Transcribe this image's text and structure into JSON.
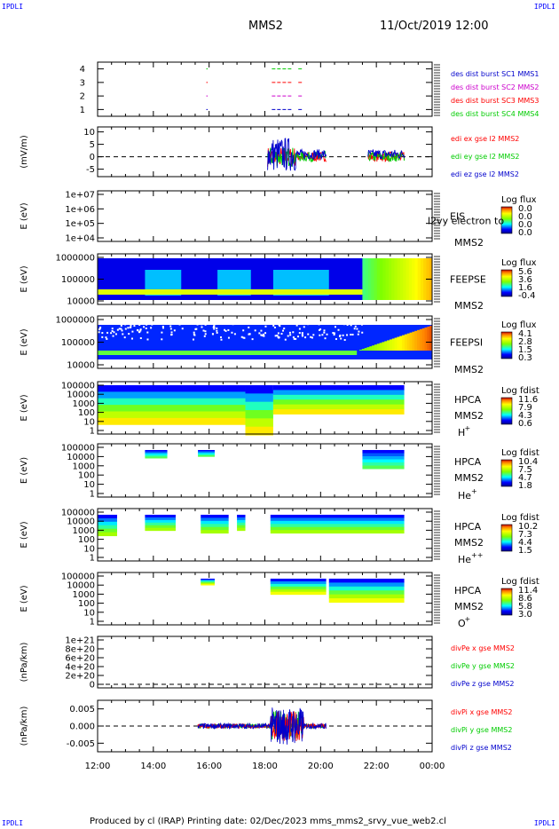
{
  "header": {
    "corner_tl": "IPDLI",
    "corner_tr": "IPDLI",
    "corner_bl": "IPDLI",
    "corner_br": "IPDLI",
    "spacecraft": "MMS2",
    "datetime": "11/Oct/2019 12:00"
  },
  "footer": {
    "text": "Produced by cl (IRAP)   Printing date: 02/Dec/2023   mms_mms2_srvy_vue_web2.cl"
  },
  "colors": {
    "red": "#ff0000",
    "green": "#00cc00",
    "blue": "#0000cc",
    "magenta": "#cc00cc",
    "frame": "#000000"
  },
  "chart_data": [
    {
      "id": "burst",
      "type": "scatter",
      "ylim": [
        0.5,
        4.5
      ],
      "yticks": [
        "1",
        "2",
        "3",
        "4"
      ],
      "legend": [
        {
          "text": "des dist burst SC1 MMS1",
          "color": "#0000cc"
        },
        {
          "text": "des dist burst SC2 MMS2",
          "color": "#cc00cc"
        },
        {
          "text": "des dist burst SC3 MMS3",
          "color": "#ff0000"
        },
        {
          "text": "des dist burst SC4 MMS4",
          "color": "#00cc00"
        }
      ],
      "series": [
        {
          "sc": 1,
          "intervals": [
            [
              15.9,
              15.95
            ],
            [
              18.25,
              18.95
            ],
            [
              19.2,
              19.35
            ]
          ]
        },
        {
          "sc": 2,
          "intervals": [
            [
              15.9,
              15.95
            ],
            [
              18.25,
              18.95
            ],
            [
              19.2,
              19.35
            ]
          ]
        },
        {
          "sc": 3,
          "intervals": [
            [
              15.9,
              15.95
            ],
            [
              18.25,
              18.95
            ],
            [
              19.2,
              19.35
            ]
          ]
        },
        {
          "sc": 4,
          "intervals": [
            [
              15.9,
              15.95
            ],
            [
              18.25,
              18.95
            ],
            [
              19.2,
              19.35
            ]
          ]
        }
      ]
    },
    {
      "id": "edi",
      "type": "line",
      "ylabel": "(mV/m)",
      "ylim": [
        -8,
        12
      ],
      "yticks": [
        "10",
        "5",
        "0",
        "-5"
      ],
      "legend": [
        {
          "text": "edi ex gse l2 MMS2",
          "color": "#ff0000"
        },
        {
          "text": "edi ey gse l2 MMS2",
          "color": "#00cc00"
        },
        {
          "text": "edi ez gse l2 MMS2",
          "color": "#0000cc"
        }
      ],
      "segments": [
        [
          18.1,
          20.2
        ],
        [
          21.7,
          23.0
        ]
      ]
    },
    {
      "id": "eis",
      "type": "heatmap",
      "ylabel": "E (eV)",
      "yticks": [
        "1e+07",
        "1e+06",
        "1e+05",
        "1e+04"
      ],
      "label": "EIS",
      "overlay_label": "l2vy electron to",
      "sc_label": "MMS2",
      "cbar_title": "Log flux",
      "cbar_ticks": [
        "0.0",
        "0.0",
        "0.0",
        "0.0"
      ]
    },
    {
      "id": "feepse",
      "type": "heatmap",
      "ylabel": "E (eV)",
      "yticks": [
        "1000000",
        "100000",
        "10000"
      ],
      "label": "FEEPSE",
      "sc_label": "MMS2",
      "cbar_title": "Log flux",
      "cbar_ticks": [
        "5.6",
        "3.6",
        "1.6",
        "-0.4"
      ]
    },
    {
      "id": "feepsi",
      "type": "heatmap",
      "ylabel": "E (eV)",
      "yticks": [
        "1000000",
        "100000",
        "10000"
      ],
      "label": "FEEPSI",
      "sc_label": "MMS2",
      "cbar_title": "Log flux",
      "cbar_ticks": [
        "4.1",
        "2.8",
        "1.5",
        "0.3"
      ]
    },
    {
      "id": "hpca_h",
      "type": "heatmap",
      "ylabel": "E (eV)",
      "yticks": [
        "100000",
        "10000",
        "1000",
        "100",
        "10",
        "1"
      ],
      "label": "HPCA",
      "sc_label": "MMS2",
      "species": "H",
      "species_sup": "+",
      "cbar_title": "Log fdist",
      "cbar_ticks": [
        "11.6",
        "7.9",
        "4.3",
        "0.6"
      ]
    },
    {
      "id": "hpca_he",
      "type": "heatmap",
      "ylabel": "E (eV)",
      "yticks": [
        "100000",
        "10000",
        "1000",
        "100",
        "10",
        "1"
      ],
      "label": "HPCA",
      "sc_label": "MMS2",
      "species": "He",
      "species_sup": "+",
      "cbar_title": "Log fdist",
      "cbar_ticks": [
        "10.4",
        "7.5",
        "4.7",
        "1.8"
      ]
    },
    {
      "id": "hpca_he2",
      "type": "heatmap",
      "ylabel": "E (eV)",
      "yticks": [
        "100000",
        "10000",
        "1000",
        "100",
        "10",
        "1"
      ],
      "label": "HPCA",
      "sc_label": "MMS2",
      "species": "He",
      "species_sup": "++",
      "cbar_title": "Log fdist",
      "cbar_ticks": [
        "10.2",
        "7.3",
        "4.4",
        "1.5"
      ]
    },
    {
      "id": "hpca_o",
      "type": "heatmap",
      "ylabel": "E (eV)",
      "yticks": [
        "100000",
        "10000",
        "1000",
        "100",
        "10",
        "1"
      ],
      "label": "HPCA",
      "sc_label": "MMS2",
      "species": "O",
      "species_sup": "+",
      "cbar_title": "Log fdist",
      "cbar_ticks": [
        "11.4",
        "8.6",
        "5.8",
        "3.0"
      ]
    },
    {
      "id": "divpe",
      "type": "line",
      "ylabel": "(nPa/km)",
      "yticks": [
        "1e+21",
        "8e+20",
        "6e+20",
        "4e+20",
        "2e+20",
        "0"
      ],
      "legend": [
        {
          "text": "divPe x gse MMS2",
          "color": "#ff0000"
        },
        {
          "text": "divPe y gse MMS2",
          "color": "#00cc00"
        },
        {
          "text": "divPe z gse MMS2",
          "color": "#0000cc"
        }
      ]
    },
    {
      "id": "divpi",
      "type": "line",
      "ylabel": "(nPa/km)",
      "ylim": [
        -0.0075,
        0.0075
      ],
      "yticks": [
        "0.005",
        "0.000",
        "-0.005"
      ],
      "legend": [
        {
          "text": "divPi x gse MMS2",
          "color": "#ff0000"
        },
        {
          "text": "divPi y gse MMS2",
          "color": "#00cc00"
        },
        {
          "text": "divPi z gse MMS2",
          "color": "#0000cc"
        }
      ],
      "segments": [
        [
          15.6,
          20.2
        ]
      ]
    }
  ],
  "xaxis": {
    "xlim": [
      12,
      24
    ],
    "ticks": [
      "12:00",
      "14:00",
      "16:00",
      "18:00",
      "20:00",
      "22:00",
      "00:00"
    ]
  }
}
